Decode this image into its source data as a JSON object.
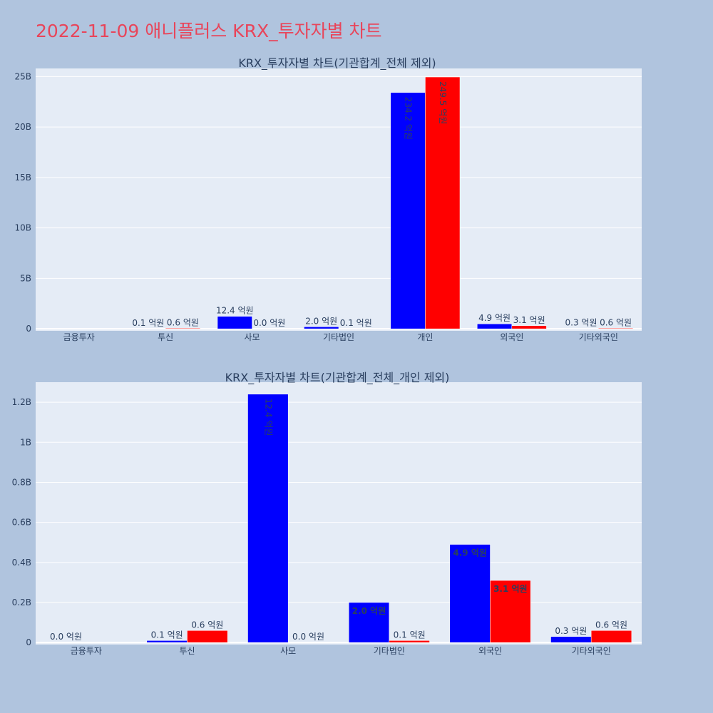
{
  "title": "2022-11-09 애니플러스 KRX_투자자별 차트",
  "colors": {
    "series1": "#0000ff",
    "series2": "#ff0000",
    "title": "#e8455a",
    "plot_bg": "#e5ecf6",
    "page_bg": "#b0c4de"
  },
  "chart_data": [
    {
      "type": "bar",
      "title": "KRX_투자자별 차트(기관합계_전체 제외)",
      "categories": [
        "금융투자",
        "투신",
        "사모",
        "기타법인",
        "개인",
        "외국인",
        "기타외국인"
      ],
      "series": [
        {
          "values": [
            0,
            0.01,
            1.24,
            0.2,
            23.42,
            0.49,
            0.03
          ],
          "labels": [
            "",
            "0.1 억원",
            "12.4 억원",
            "2.0 억원",
            "234.2 억원",
            "4.9 억원",
            "0.3 억원"
          ]
        },
        {
          "values": [
            0,
            0.06,
            0.0,
            0.01,
            24.95,
            0.31,
            0.06
          ],
          "labels": [
            "",
            "0.6 억원",
            "0.0 억원",
            "0.1 억원",
            "249.5 억원",
            "3.1 억원",
            "0.6 억원"
          ]
        }
      ],
      "ylim": [
        -0.2,
        25.8
      ],
      "yticks": [
        0,
        5,
        10,
        15,
        20,
        25
      ],
      "ytick_labels": [
        "0",
        "5B",
        "10B",
        "15B",
        "20B",
        "25B"
      ],
      "grid": true,
      "legend": "none"
    },
    {
      "type": "bar",
      "title": "KRX_투자자별 차트(기관합계_전체_개인 제외)",
      "categories": [
        "금융투자",
        "투신",
        "사모",
        "기타법인",
        "외국인",
        "기타외국인"
      ],
      "series": [
        {
          "values": [
            0.0,
            0.01,
            1.24,
            0.2,
            0.49,
            0.03
          ],
          "labels": [
            "0.0 억원",
            "0.1 억원",
            "12.4 억원",
            "2.0 억원",
            "4.9 억원",
            "0.3 억원"
          ]
        },
        {
          "values": [
            0.0,
            0.06,
            0.0,
            0.01,
            0.31,
            0.06
          ],
          "labels": [
            "",
            "0.6 억원",
            "0.0 억원",
            "0.1 억원",
            "3.1 억원",
            "0.6 억원"
          ]
        }
      ],
      "ylim": [
        -0.01,
        1.3
      ],
      "yticks": [
        0,
        0.2,
        0.4,
        0.6,
        0.8,
        1.0,
        1.2
      ],
      "ytick_labels": [
        "0",
        "0.2B",
        "0.4B",
        "0.6B",
        "0.8B",
        "1B",
        "1.2B"
      ],
      "grid": true,
      "legend": "none"
    }
  ]
}
